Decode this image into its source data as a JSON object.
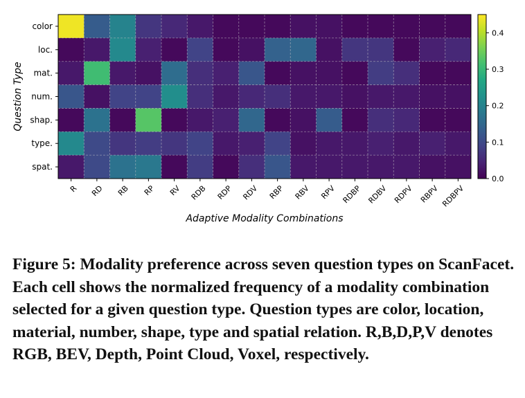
{
  "chart_data": {
    "type": "heatmap",
    "ylabel": "Question Type",
    "xlabel": "Adaptive Modality Combinations",
    "rows": [
      "color",
      "loc.",
      "mat.",
      "num.",
      "shap.",
      "type.",
      "spat."
    ],
    "cols": [
      "R",
      "RD",
      "RB",
      "RP",
      "RV",
      "RDB",
      "RDP",
      "RDV",
      "RBP",
      "RBV",
      "RPV",
      "RDBP",
      "RDBV",
      "RDPV",
      "RBPV",
      "RDBPV"
    ],
    "values": [
      [
        0.44,
        0.13,
        0.2,
        0.07,
        0.05,
        0.03,
        0.01,
        0.01,
        0.01,
        0.02,
        0.02,
        0.01,
        0.01,
        0.01,
        0.01,
        0.01
      ],
      [
        0.01,
        0.03,
        0.21,
        0.04,
        0.01,
        0.09,
        0.01,
        0.02,
        0.14,
        0.15,
        0.02,
        0.07,
        0.07,
        0.01,
        0.04,
        0.05
      ],
      [
        0.03,
        0.31,
        0.03,
        0.02,
        0.16,
        0.06,
        0.04,
        0.12,
        0.01,
        0.02,
        0.02,
        0.01,
        0.08,
        0.06,
        0.01,
        0.01
      ],
      [
        0.12,
        0.02,
        0.09,
        0.09,
        0.22,
        0.06,
        0.03,
        0.05,
        0.06,
        0.03,
        0.03,
        0.02,
        0.03,
        0.03,
        0.02,
        0.02
      ],
      [
        0.01,
        0.17,
        0.01,
        0.33,
        0.01,
        0.03,
        0.04,
        0.15,
        0.01,
        0.02,
        0.13,
        0.01,
        0.06,
        0.05,
        0.01,
        0.01
      ],
      [
        0.21,
        0.1,
        0.07,
        0.08,
        0.07,
        0.09,
        0.03,
        0.04,
        0.09,
        0.02,
        0.03,
        0.03,
        0.04,
        0.03,
        0.04,
        0.03
      ],
      [
        0.03,
        0.1,
        0.17,
        0.18,
        0.01,
        0.08,
        0.01,
        0.06,
        0.12,
        0.03,
        0.03,
        0.03,
        0.03,
        0.03,
        0.02,
        0.02
      ]
    ],
    "colormap": "viridis",
    "vmin": 0.0,
    "vmax": 0.45,
    "colorbar_ticks": [
      "0.0",
      "0.1",
      "0.2",
      "0.3",
      "0.4"
    ],
    "grid": true
  },
  "caption": "Figure 5: Modality preference across seven question types on ScanFacet. Each cell shows the normalized frequency of a modality combination selected for a given question type. Question types are color, location, material, number, shape, type and spatial relation. R,B,D,P,V denotes RGB, BEV, Depth, Point Cloud, Voxel, respectively."
}
